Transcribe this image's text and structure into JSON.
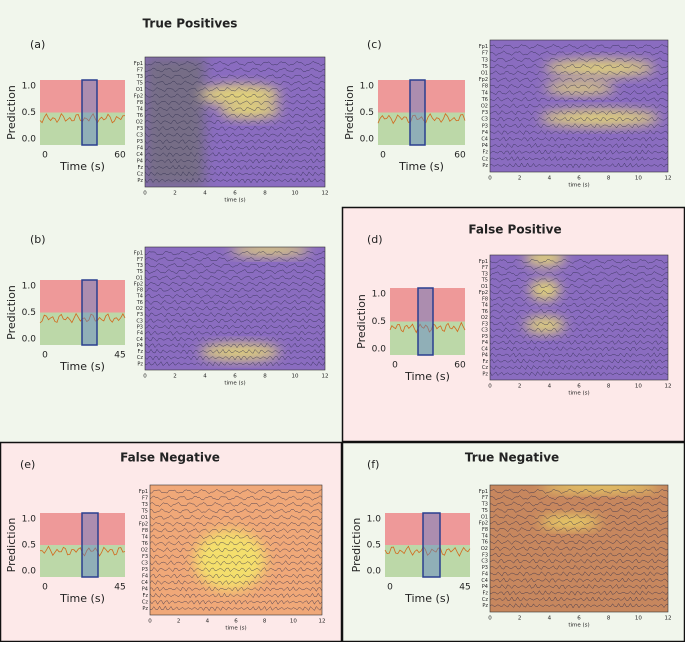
{
  "titles": {
    "true_positives": "True Positives",
    "false_positive": "False Positive",
    "false_negative": "False Negative",
    "true_negative": "True Negative"
  },
  "prediction": {
    "ylabel": "Prediction",
    "xlabel": "Time (s)",
    "yticks": [
      "1.0",
      "0.5",
      "0.0"
    ],
    "xstart": "0"
  },
  "eeg": {
    "channels": [
      "Fp1",
      "F7",
      "T3",
      "T5",
      "O1",
      "Fp2",
      "F8",
      "T4",
      "T6",
      "O2",
      "F3",
      "C3",
      "P3",
      "F4",
      "C4",
      "P4",
      "Fz",
      "Cz",
      "Pz"
    ],
    "xticks": [
      "0",
      "2",
      "4",
      "6",
      "8",
      "10",
      "12"
    ],
    "xlabel": "time (s)"
  },
  "panels": [
    {
      "label": "(a)",
      "xend": "60"
    },
    {
      "label": "(b)",
      "xend": "45"
    },
    {
      "label": "(c)",
      "xend": "60"
    },
    {
      "label": "(d)",
      "xend": "60"
    },
    {
      "label": "(e)",
      "xend": "45"
    },
    {
      "label": "(f)",
      "xend": "45"
    }
  ]
}
